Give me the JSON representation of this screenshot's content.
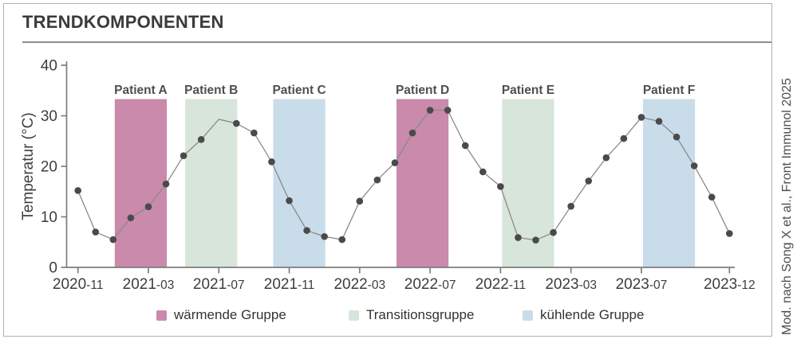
{
  "header": {
    "title": "TRENDKOMPONENTEN"
  },
  "citation": "Mod. nach Song X et al., Front Immunol 2025",
  "colors": {
    "warm": "#c98aac",
    "transition": "#d7e5da",
    "cool": "#c9dcea",
    "dot": "#4a4a4a",
    "line": "#8a8a8a",
    "axis": "#7d7d7d",
    "tick_text": "#3d3d3d",
    "band_label": "#4f4f4f"
  },
  "legend": {
    "items": [
      {
        "label": "wärmende Gruppe",
        "color_key": "warm"
      },
      {
        "label": "Transitionsgruppe",
        "color_key": "transition"
      },
      {
        "label": "kühlende Gruppe",
        "color_key": "cool"
      }
    ]
  },
  "chart_data": {
    "type": "line",
    "title": "TRENDKOMPONENTEN",
    "xlabel": "",
    "ylabel": "Temperatur (°C)",
    "ylim": [
      0,
      40
    ],
    "yticks": [
      0,
      10,
      20,
      30,
      40
    ],
    "grid": false,
    "legend_position": "bottom",
    "xtick_labels": [
      "2020-11",
      "2021-03",
      "2021-07",
      "2021-11",
      "2022-03",
      "2022-07",
      "2022-11",
      "2023-03",
      "2023-07",
      "2023-12"
    ],
    "x": [
      "2020-11",
      "2020-12",
      "2021-01",
      "2021-02",
      "2021-03",
      "2021-04",
      "2021-05",
      "2021-06",
      "2021-07",
      "2021-08",
      "2021-09",
      "2021-10",
      "2021-11",
      "2021-12",
      "2022-01",
      "2022-02",
      "2022-03",
      "2022-04",
      "2022-05",
      "2022-06",
      "2022-07",
      "2022-08",
      "2022-09",
      "2022-10",
      "2022-11",
      "2022-12",
      "2023-01",
      "2023-02",
      "2023-03",
      "2023-04",
      "2023-05",
      "2023-06",
      "2023-07",
      "2023-08",
      "2023-09",
      "2023-10",
      "2023-11",
      "2023-12"
    ],
    "values": [
      15.2,
      7.0,
      5.5,
      9.8,
      12.0,
      16.5,
      22.1,
      25.3,
      29.3,
      28.5,
      26.6,
      20.9,
      13.2,
      7.3,
      6.1,
      5.5,
      13.1,
      17.3,
      20.7,
      26.6,
      31.1,
      31.1,
      24.1,
      18.9,
      16.0,
      5.9,
      5.4,
      6.9,
      12.1,
      17.1,
      21.7,
      25.5,
      29.7,
      28.9,
      25.8,
      20.1,
      13.9,
      6.7
    ],
    "no_marker_points": [
      "2021-07"
    ],
    "bands": [
      {
        "label": "Patient A",
        "group": "warm",
        "start": "2021-01",
        "end": "2021-04",
        "top": 33.3
      },
      {
        "label": "Patient B",
        "group": "transition",
        "start": "2021-05",
        "end": "2021-08",
        "top": 33.3
      },
      {
        "label": "Patient C",
        "group": "cool",
        "start": "2021-10",
        "end": "2022-01",
        "top": 33.3
      },
      {
        "label": "Patient D",
        "group": "warm",
        "start": "2022-05",
        "end": "2022-08",
        "top": 33.3
      },
      {
        "label": "Patient E",
        "group": "transition",
        "start": "2022-11",
        "end": "2023-02",
        "top": 33.3
      },
      {
        "label": "Patient F",
        "group": "cool",
        "start": "2023-07",
        "end": "2023-10",
        "top": 33.3
      }
    ]
  }
}
